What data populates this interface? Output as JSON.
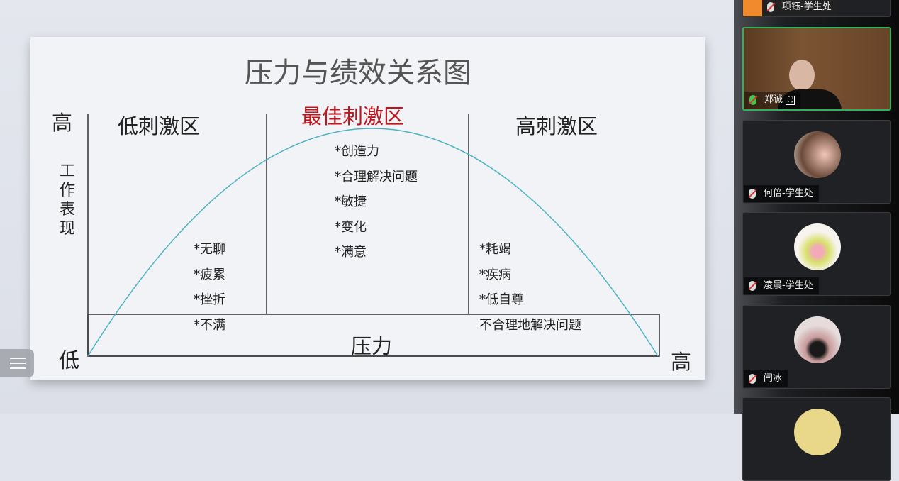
{
  "slide": {
    "title": "压力与绩效关系图",
    "y_high": "高",
    "y_label": "工作表现",
    "y_low": "低",
    "x_label": "压力",
    "x_high": "高",
    "zones": [
      {
        "label": "低刺激区",
        "items": [
          "*无聊",
          "*疲累",
          "*挫折",
          "*不满"
        ]
      },
      {
        "label": "最佳刺激区",
        "items": [
          "*创造力",
          "*合理解决问题",
          "*敏捷",
          "*变化",
          "*满意"
        ],
        "color": "#c0141c"
      },
      {
        "label": "高刺激区",
        "items": [
          "*耗竭",
          "*疾病",
          "*低自尊",
          "不合理地解决问题"
        ]
      }
    ],
    "curve_color": "#4bb3c4"
  },
  "participants": [
    {
      "name": "项钰-学生处",
      "muted": true
    },
    {
      "name": "郑诚",
      "muted": false,
      "video": true
    },
    {
      "name": "何倍-学生处",
      "muted": true
    },
    {
      "name": "凌晨-学生处",
      "muted": true
    },
    {
      "name": "闫冰",
      "muted": true
    }
  ]
}
